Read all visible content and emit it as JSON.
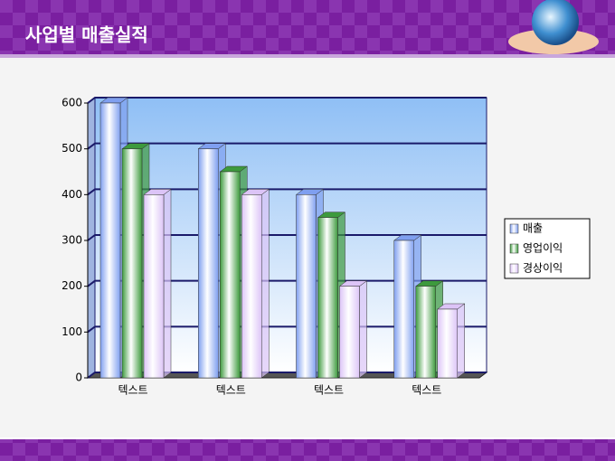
{
  "chart_data": {
    "type": "bar3d",
    "title": "사업별 매출실적",
    "categories": [
      "텍스트",
      "텍스트",
      "텍스트",
      "텍스트"
    ],
    "series": [
      {
        "name": "매출",
        "color": "#7f9ff0",
        "values": [
          600,
          500,
          400,
          300
        ]
      },
      {
        "name": "영업이익",
        "color": "#3d9a3d",
        "values": [
          500,
          450,
          350,
          200
        ]
      },
      {
        "name": "경상이익",
        "color": "#dcc4f7",
        "values": [
          400,
          400,
          200,
          150
        ]
      }
    ],
    "ylim": [
      0,
      600
    ],
    "yticks": [
      0,
      100,
      200,
      300,
      400,
      500,
      600
    ],
    "grid": true,
    "legend": "right"
  }
}
